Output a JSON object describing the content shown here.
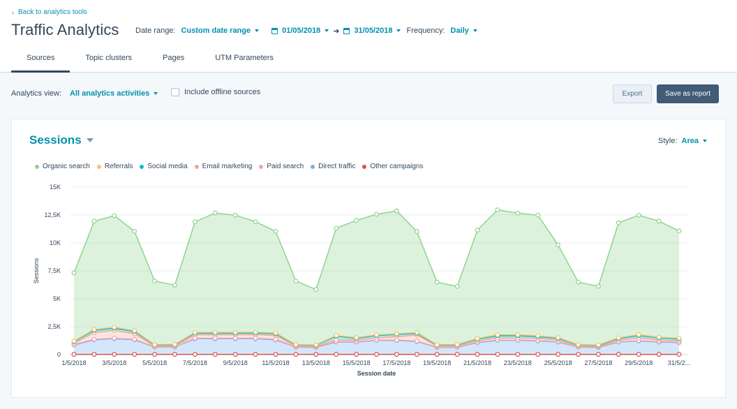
{
  "header": {
    "back_link": "Back to analytics tools",
    "title": "Traffic Analytics",
    "date_range_label": "Date range:",
    "date_range_value": "Custom date range",
    "start_date": "01/05/2018",
    "end_date": "31/05/2018",
    "frequency_label": "Frequency:",
    "frequency_value": "Daily"
  },
  "tabs": [
    {
      "label": "Sources",
      "active": true
    },
    {
      "label": "Topic clusters",
      "active": false
    },
    {
      "label": "Pages",
      "active": false
    },
    {
      "label": "UTM Parameters",
      "active": false
    }
  ],
  "viewbar": {
    "analytics_view_label": "Analytics view:",
    "analytics_view_value": "All analytics activities",
    "offline_label": "Include offline sources",
    "offline_checked": false,
    "export_label": "Export",
    "save_label": "Save as report"
  },
  "card": {
    "title": "Sessions",
    "style_label": "Style:",
    "style_value": "Area"
  },
  "chart_data": {
    "type": "area",
    "stacked": true,
    "xlabel": "Session date",
    "ylabel": "Sessions",
    "ylim": [
      0,
      15000
    ],
    "yticks": [
      0,
      2500,
      5000,
      7500,
      10000,
      12500,
      15000
    ],
    "ytick_labels": [
      "0",
      "2,5K",
      "5K",
      "7,5K",
      "10K",
      "12,5K",
      "15K"
    ],
    "x": [
      "1/5/2018",
      "2/5/2018",
      "3/5/2018",
      "4/5/2018",
      "5/5/2018",
      "6/5/2018",
      "7/5/2018",
      "8/5/2018",
      "9/5/2018",
      "10/5/2018",
      "11/5/2018",
      "12/5/2018",
      "13/5/2018",
      "14/5/2018",
      "15/5/2018",
      "16/5/2018",
      "17/5/2018",
      "18/5/2018",
      "19/5/2018",
      "20/5/2018",
      "21/5/2018",
      "22/5/2018",
      "23/5/2018",
      "24/5/2018",
      "25/5/2018",
      "26/5/2018",
      "27/5/2018",
      "28/5/2018",
      "29/5/2018",
      "30/5/2018",
      "31/5/2018"
    ],
    "xtick_labels": [
      "1/5/2018",
      "3/5/2018",
      "5/5/2018",
      "7/5/2018",
      "9/5/2018",
      "11/5/2018",
      "13/5/2018",
      "15/5/2018",
      "17/5/2018",
      "19/5/2018",
      "21/5/2018",
      "23/5/2018",
      "25/5/2018",
      "27/5/2018",
      "29/5/2018",
      "31/5/2..."
    ],
    "grid": true,
    "legend_position": "top-left",
    "series": [
      {
        "name": "Other campaigns",
        "color": "#d9534f",
        "values": [
          20,
          20,
          20,
          20,
          20,
          20,
          20,
          20,
          20,
          20,
          20,
          20,
          20,
          20,
          20,
          20,
          20,
          20,
          20,
          20,
          20,
          20,
          20,
          20,
          20,
          20,
          20,
          20,
          20,
          20,
          20
        ]
      },
      {
        "name": "Direct traffic",
        "color": "#6fb0f0",
        "values": [
          830,
          1300,
          1400,
          1300,
          640,
          650,
          1400,
          1400,
          1400,
          1400,
          1300,
          640,
          620,
          1100,
          1100,
          1250,
          1250,
          1150,
          620,
          630,
          1050,
          1250,
          1250,
          1200,
          1100,
          640,
          620,
          1100,
          1200,
          1100,
          1050
        ]
      },
      {
        "name": "Paid search",
        "color": "#f2a0b8",
        "values": [
          30,
          40,
          40,
          40,
          20,
          20,
          40,
          40,
          40,
          40,
          40,
          20,
          20,
          30,
          30,
          30,
          30,
          30,
          20,
          20,
          30,
          30,
          30,
          30,
          30,
          20,
          20,
          30,
          30,
          30,
          30
        ]
      },
      {
        "name": "Email marketing",
        "color": "#f5a88e",
        "values": [
          120,
          600,
          700,
          500,
          70,
          80,
          300,
          300,
          300,
          320,
          350,
          70,
          80,
          150,
          150,
          200,
          300,
          550,
          90,
          90,
          130,
          180,
          180,
          200,
          150,
          70,
          70,
          140,
          250,
          150,
          120
        ]
      },
      {
        "name": "Social media",
        "color": "#00bcd4",
        "values": [
          150,
          200,
          200,
          200,
          100,
          100,
          150,
          150,
          150,
          150,
          150,
          100,
          90,
          350,
          150,
          200,
          200,
          150,
          100,
          100,
          150,
          200,
          200,
          150,
          150,
          100,
          90,
          150,
          200,
          180,
          180
        ]
      },
      {
        "name": "Referrals",
        "color": "#f5c26b",
        "values": [
          50,
          80,
          80,
          80,
          40,
          40,
          70,
          70,
          70,
          70,
          70,
          40,
          40,
          60,
          60,
          60,
          60,
          70,
          40,
          40,
          60,
          80,
          80,
          80,
          70,
          40,
          40,
          60,
          80,
          70,
          70
        ]
      },
      {
        "name": "Organic search",
        "color": "#8fd48f",
        "values": [
          6100,
          9700,
          10000,
          8900,
          5700,
          5300,
          9900,
          10700,
          10500,
          9900,
          9100,
          5700,
          4950,
          9600,
          10500,
          10800,
          11000,
          9050,
          5600,
          5200,
          9700,
          11200,
          10900,
          10800,
          8300,
          5600,
          5250,
          10300,
          10700,
          10400,
          9600
        ]
      }
    ]
  },
  "legend": [
    {
      "name": "Organic search",
      "color": "#8fd48f"
    },
    {
      "name": "Referrals",
      "color": "#f5c26b"
    },
    {
      "name": "Social media",
      "color": "#00bcd4"
    },
    {
      "name": "Email marketing",
      "color": "#f5a88e"
    },
    {
      "name": "Paid search",
      "color": "#f2a0b8"
    },
    {
      "name": "Direct traffic",
      "color": "#6fb0f0"
    },
    {
      "name": "Other campaigns",
      "color": "#d9534f"
    }
  ]
}
